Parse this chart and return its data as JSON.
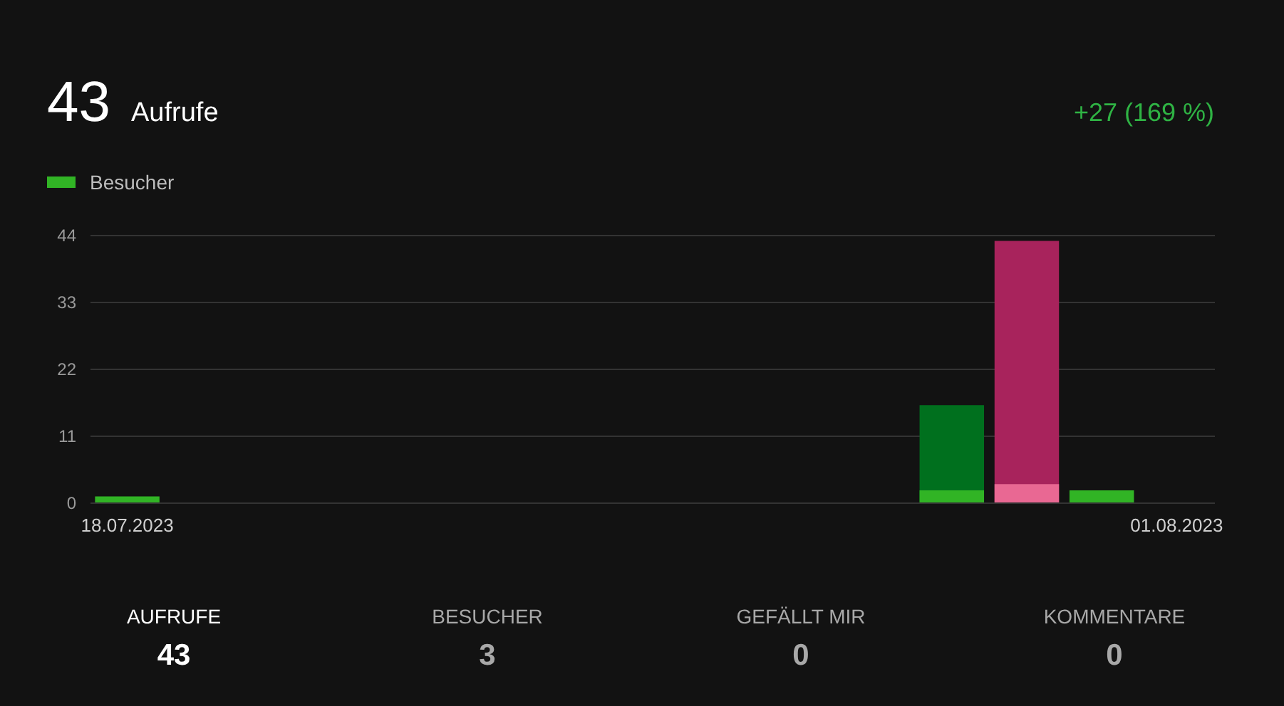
{
  "chart_data": {
    "type": "bar",
    "title": "43",
    "subtitle": "Aufrufe",
    "categories": [
      "18.07.2023",
      null,
      null,
      null,
      null,
      null,
      null,
      null,
      null,
      null,
      null,
      null,
      null,
      null,
      "01.08.2023"
    ],
    "series": [
      {
        "colors": [
          "#00701e",
          "#00701e",
          "#00701e",
          "#00701e",
          "#00701e",
          "#00701e",
          "#00701e",
          "#00701e",
          "#00701e",
          "#00701e",
          "#00701e",
          "#00701e",
          "#a8235c",
          "#00701e",
          "#00701e"
        ],
        "values": [
          null,
          0,
          0,
          0,
          0,
          0,
          0,
          0,
          0,
          0,
          0,
          16,
          43,
          null,
          0
        ]
      },
      {
        "name": "Besucher",
        "color": "#31b425",
        "colors": [
          "#31b425",
          "#31b425",
          "#31b425",
          "#31b425",
          "#31b425",
          "#31b425",
          "#31b425",
          "#31b425",
          "#31b425",
          "#31b425",
          "#31b425",
          "#31b425",
          "#e96893",
          "#31b425",
          "#31b425"
        ],
        "values": [
          1,
          0,
          0,
          0,
          0,
          0,
          0,
          0,
          0,
          0,
          0,
          2,
          3,
          2,
          0
        ]
      }
    ],
    "ylim": [
      0,
      44
    ],
    "yticks": [
      0,
      11,
      22,
      33,
      44
    ],
    "grid": "y",
    "legend": "top left",
    "annotations": [
      "+27 (169 %)",
      "AUFRUFE",
      "43",
      "BESUCHER",
      "3",
      "GEFÄLLT MIR",
      "0",
      "KOMMENTARE",
      "0"
    ]
  }
}
